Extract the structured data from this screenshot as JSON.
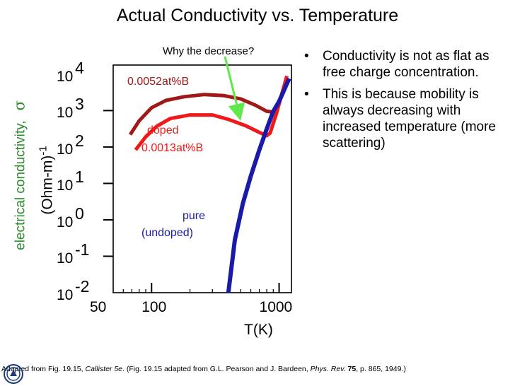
{
  "title": "Actual Conductivity vs. Temperature",
  "colors": {
    "dark_red": "#a01818",
    "red": "#f01818",
    "blue": "#1a1aa8",
    "green": "#2e8b2e",
    "arrow": "#5ee84a"
  },
  "chart_data": {
    "type": "line",
    "title": "Actual Conductivity vs. Temperature",
    "xlabel": "T(K)",
    "ylabel_quantity": "electrical conductivity,",
    "ylabel_symbol": "σ",
    "ylabel_unit": "(Ohm-m)",
    "ylabel_unit_exp": "-1",
    "x_scale": "log",
    "y_scale": "log",
    "xlim": [
      50,
      1250
    ],
    "ylim_exponent": [
      -2,
      4.25
    ],
    "x_ticks": [
      {
        "value": 100,
        "label": "100"
      },
      {
        "value": 1000,
        "label": "1000"
      }
    ],
    "x_tick_labels_extra": [
      {
        "value": 50,
        "label": "50"
      }
    ],
    "y_ticks": [
      {
        "base": "10",
        "exp": "4",
        "value": 4
      },
      {
        "base": "10",
        "exp": "3",
        "value": 3
      },
      {
        "base": "10",
        "exp": "2",
        "value": 2
      },
      {
        "base": "10",
        "exp": "1",
        "value": 1
      },
      {
        "base": "10",
        "exp": "0",
        "value": 0
      },
      {
        "base": "10",
        "exp": "-1",
        "value": -1
      },
      {
        "base": "10",
        "exp": "-2",
        "value": -2
      }
    ],
    "series": [
      {
        "name": "0.0052at%B",
        "color": "#a01818",
        "points": [
          [
            68,
            2.34
          ],
          [
            80,
            2.72
          ],
          [
            100,
            3.08
          ],
          [
            130,
            3.28
          ],
          [
            180,
            3.38
          ],
          [
            260,
            3.44
          ],
          [
            370,
            3.41
          ],
          [
            500,
            3.32
          ],
          [
            650,
            3.15
          ],
          [
            800,
            2.98
          ],
          [
            900,
            2.96
          ],
          [
            1000,
            3.22
          ],
          [
            1150,
            3.9
          ]
        ]
      },
      {
        "name": "doped 0.0013at%B",
        "color": "#f01818",
        "points": [
          [
            75,
            1.92
          ],
          [
            90,
            2.28
          ],
          [
            110,
            2.57
          ],
          [
            140,
            2.78
          ],
          [
            200,
            2.88
          ],
          [
            300,
            2.88
          ],
          [
            400,
            2.76
          ],
          [
            550,
            2.58
          ],
          [
            700,
            2.4
          ],
          [
            800,
            2.31
          ],
          [
            850,
            2.38
          ],
          [
            950,
            2.9
          ],
          [
            1150,
            3.95
          ]
        ]
      },
      {
        "name": "pure (undoped)",
        "color": "#1a1aa8",
        "points": [
          [
            400,
            -2.0
          ],
          [
            450,
            -0.55
          ],
          [
            520,
            0.45
          ],
          [
            600,
            1.2
          ],
          [
            700,
            1.92
          ],
          [
            800,
            2.5
          ],
          [
            900,
            2.98
          ],
          [
            1000,
            3.25
          ],
          [
            1200,
            3.88
          ]
        ]
      }
    ],
    "annotations": {
      "question": "Why the decrease?",
      "label_high": "0.0052at%B",
      "label_doped": "doped",
      "label_doped_conc": "0.0013at%B",
      "label_pure": "pure",
      "label_pure_sub": "(undoped)"
    }
  },
  "bullets": [
    "Conductivity is not as flat as free charge concentration.",
    "This is because mobility is always decreasing with increased temperature (more scattering)"
  ],
  "footnote": {
    "pre": "Adapted from Fig. 19.15, ",
    "book": "Callister 5e",
    "mid": ".  (Fig. 19.15 adapted from G.L. Pearson and J. Bardeen, ",
    "journal": "Phys. Rev.",
    "volume": "75",
    "post": ", p. 865, 1949.)"
  }
}
